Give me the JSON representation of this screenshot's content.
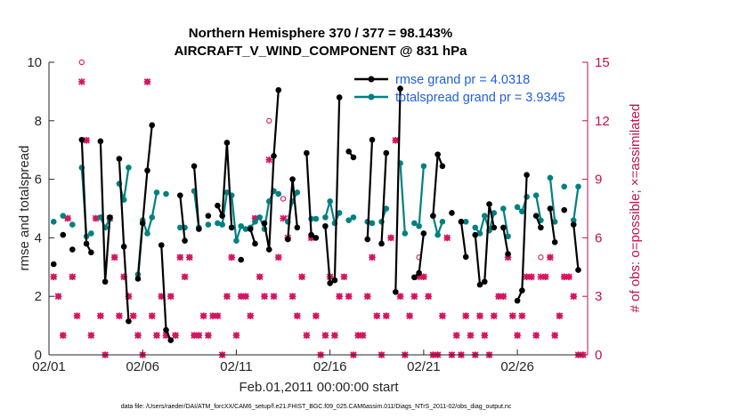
{
  "chart_data": {
    "type": "line",
    "title": "Northern Hemisphere 370 / 377 = 98.143%",
    "subtitle": "AIRCRAFT_V_WIND_COMPONENT @ 831 hPa",
    "xlabel": "Feb.01,2011 00:00:00 start",
    "ylabel": "rmse and totalspread",
    "ylabel_right": "# of obs: o=possible; ×=assimilated",
    "footer": "data file: /Users/raeder/DAI/ATM_forcXX/CAM6_setup/f.e21.FHIST_BGC.f09_025.CAM6assim.011/Diags_NTrS_2011-02/obs_diag_output.nc",
    "xlim": [
      1,
      29.75
    ],
    "ylim": [
      0,
      10
    ],
    "ylim_right": [
      0,
      15
    ],
    "x_ticks": [
      1,
      6,
      11,
      16,
      21,
      26
    ],
    "x_tick_labels": [
      "02/01",
      "02/06",
      "02/11",
      "02/16",
      "02/21",
      "02/26"
    ],
    "y_ticks": [
      0,
      2,
      4,
      6,
      8,
      10
    ],
    "y_tick_labels": [
      "0",
      "2",
      "4",
      "6",
      "8",
      "10"
    ],
    "y_right_ticks": [
      0,
      3,
      6,
      9,
      12,
      15
    ],
    "y_right_tick_labels": [
      "0",
      "3",
      "6",
      "9",
      "12",
      "15"
    ],
    "colors": {
      "rmse": "#000000",
      "spread": "#008080",
      "obs": "#d6155f",
      "axis_right": "#c0104f"
    },
    "series": [
      {
        "name": "rmse grand pr = 4.0318",
        "x": [
          1.25,
          1.5,
          1.75,
          2.0,
          2.25,
          2.5,
          2.75,
          3.0,
          3.25,
          3.5,
          3.75,
          4.0,
          4.25,
          4.5,
          4.75,
          5.0,
          5.25,
          5.5,
          5.75,
          6.0,
          6.25,
          6.5,
          6.75,
          7.0,
          7.25,
          7.5,
          7.75,
          8.0,
          8.25,
          8.5,
          8.75,
          9.0,
          9.25,
          9.5,
          9.75,
          10.0,
          10.25,
          10.5,
          10.75,
          11.0,
          11.25,
          11.5,
          11.75,
          12.0,
          12.25,
          12.5,
          12.75,
          13.0,
          13.25,
          13.5,
          13.75,
          14.0,
          14.25,
          14.5,
          14.75,
          15.0,
          15.25,
          15.5,
          15.75,
          16.0,
          16.25,
          16.5,
          16.75,
          17.0,
          17.25,
          17.5,
          17.75,
          18.0,
          18.25,
          18.5,
          18.75,
          19.0,
          19.25,
          19.5,
          19.75,
          20.0,
          20.25,
          20.5,
          20.75,
          21.0,
          21.25,
          21.5,
          21.75,
          22.0,
          22.25,
          22.5,
          22.75,
          23.0,
          23.25,
          23.5,
          23.75,
          24.0,
          24.25,
          24.5,
          24.75,
          25.0,
          25.25,
          25.5,
          25.75,
          26.0,
          26.25,
          26.5,
          26.75,
          27.0,
          27.25,
          27.5,
          27.75,
          28.0,
          28.25,
          28.5,
          28.75,
          29.0,
          29.25,
          29.5
        ],
        "values": [
          3.1,
          null,
          4.1,
          null,
          3.6,
          null,
          7.35,
          3.8,
          3.5,
          null,
          7.3,
          2.5,
          4.7,
          null,
          6.7,
          3.7,
          1.15,
          null,
          2.6,
          4.5,
          6.3,
          7.85,
          null,
          3.75,
          0.85,
          0.5,
          null,
          5.45,
          3.9,
          null,
          6.45,
          4.3,
          null,
          4.75,
          null,
          5.1,
          4.75,
          7.25,
          4.35,
          null,
          3.25,
          null,
          4.3,
          3.8,
          null,
          4.5,
          3.6,
          6.8,
          9.05,
          null,
          3.95,
          6.0,
          4.35,
          null,
          6.9,
          4.1,
          4.0,
          null,
          4.4,
          2.45,
          2.55,
          8.8,
          null,
          6.95,
          6.75,
          null,
          null,
          3.95,
          7.35,
          null,
          3.8,
          6.9,
          null,
          2.15,
          9.1,
          null,
          null,
          2.65,
          2.8,
          4.15,
          null,
          4.75,
          6.85,
          6.45,
          null,
          4.85,
          null,
          4.55,
          3.35,
          null,
          4.1,
          2.4,
          2.5,
          5.15,
          4.35,
          null,
          4.35,
          3.45,
          null,
          1.85,
          2.2,
          6.15,
          null,
          4.75,
          4.35,
          null,
          5.0,
          3.85,
          null,
          4.95,
          null,
          4.45,
          2.9,
          null
        ]
      },
      {
        "name": "totalspread grand pr = 3.9345",
        "x": [
          1.25,
          1.5,
          1.75,
          2.0,
          2.25,
          2.5,
          2.75,
          3.0,
          3.25,
          3.5,
          3.75,
          4.0,
          4.25,
          4.5,
          4.75,
          5.0,
          5.25,
          5.5,
          5.75,
          6.0,
          6.25,
          6.5,
          6.75,
          7.0,
          7.25,
          7.5,
          7.75,
          8.0,
          8.25,
          8.5,
          8.75,
          9.0,
          9.25,
          9.5,
          9.75,
          10.0,
          10.25,
          10.5,
          10.75,
          11.0,
          11.25,
          11.5,
          11.75,
          12.0,
          12.25,
          12.5,
          12.75,
          13.0,
          13.25,
          13.5,
          13.75,
          14.0,
          14.25,
          14.5,
          14.75,
          15.0,
          15.25,
          15.5,
          15.75,
          16.0,
          16.25,
          16.5,
          16.75,
          17.0,
          17.25,
          17.5,
          17.75,
          18.0,
          18.25,
          18.5,
          18.75,
          19.0,
          19.25,
          19.5,
          19.75,
          20.0,
          20.25,
          20.5,
          20.75,
          21.0,
          21.25,
          21.5,
          21.75,
          22.0,
          22.25,
          22.5,
          22.75,
          23.0,
          23.25,
          23.5,
          23.75,
          24.0,
          24.25,
          24.5,
          24.75,
          25.0,
          25.25,
          25.5,
          25.75,
          26.0,
          26.25,
          26.5,
          26.75,
          27.0,
          27.25,
          27.5,
          27.75,
          28.0,
          28.25,
          28.5,
          28.75,
          29.0,
          29.25,
          29.5
        ],
        "values": [
          4.55,
          null,
          4.75,
          null,
          4.45,
          null,
          6.4,
          4.05,
          4.15,
          null,
          4.7,
          4.35,
          4.65,
          null,
          5.85,
          5.3,
          6.4,
          null,
          2.75,
          4.6,
          4.15,
          4.7,
          5.55,
          null,
          5.5,
          null,
          null,
          4.35,
          4.35,
          null,
          5.6,
          4.35,
          null,
          4.45,
          null,
          4.5,
          4.45,
          5.55,
          5.45,
          3.9,
          4.4,
          4.3,
          4.35,
          4.55,
          4.7,
          4.3,
          5.25,
          5.6,
          5.5,
          null,
          4.55,
          5.25,
          5.55,
          null,
          null,
          4.65,
          4.65,
          null,
          4.7,
          5.25,
          4.5,
          4.85,
          null,
          4.6,
          4.7,
          null,
          null,
          4.55,
          4.5,
          null,
          4.55,
          5.0,
          null,
          null,
          6.55,
          4.15,
          null,
          4.5,
          4.4,
          6.45,
          null,
          4.75,
          4.1,
          4.55,
          null,
          null,
          null,
          4.55,
          4.55,
          null,
          4.35,
          4.15,
          4.75,
          4.25,
          4.85,
          null,
          5.0,
          4.05,
          null,
          5.05,
          4.9,
          5.4,
          null,
          5.45,
          4.6,
          null,
          6.05,
          4.55,
          null,
          5.75,
          null,
          4.6,
          5.75,
          null
        ]
      },
      {
        "name": "obs possible",
        "axis": "right",
        "x": [
          1.25,
          1.5,
          1.75,
          2.0,
          2.25,
          2.5,
          2.75,
          3.0,
          3.25,
          3.5,
          3.75,
          4.0,
          4.25,
          4.5,
          4.75,
          5.0,
          5.25,
          5.5,
          5.75,
          6.0,
          6.25,
          6.5,
          6.75,
          7.0,
          7.25,
          7.5,
          7.75,
          8.0,
          8.25,
          8.5,
          8.75,
          9.0,
          9.25,
          9.5,
          9.75,
          10.0,
          10.25,
          10.5,
          10.75,
          11.0,
          11.25,
          11.5,
          11.75,
          12.0,
          12.25,
          12.5,
          12.75,
          13.0,
          13.25,
          13.5,
          13.75,
          14.0,
          14.25,
          14.5,
          14.75,
          15.0,
          15.25,
          15.5,
          15.75,
          16.0,
          16.25,
          16.5,
          16.75,
          17.0,
          17.25,
          17.5,
          17.75,
          18.0,
          18.25,
          18.5,
          18.75,
          19.0,
          19.25,
          19.5,
          19.75,
          20.0,
          20.25,
          20.5,
          20.75,
          21.0,
          21.25,
          21.5,
          21.75,
          22.0,
          22.25,
          22.5,
          22.75,
          23.0,
          23.25,
          23.5,
          23.75,
          24.0,
          24.25,
          24.5,
          24.75,
          25.0,
          25.25,
          25.5,
          25.75,
          26.0,
          26.25,
          26.5,
          26.75,
          27.0,
          27.25,
          27.5,
          27.75,
          28.0,
          28.25,
          28.5,
          28.75,
          29.0,
          29.25,
          29.5
        ],
        "values": [
          4,
          3,
          1,
          7,
          4,
          2,
          15,
          11,
          1,
          7,
          2,
          0,
          7,
          5,
          2,
          4,
          3,
          2,
          1,
          0,
          14,
          2,
          1,
          3,
          1,
          3,
          1,
          5,
          4,
          5,
          1,
          1,
          2,
          1,
          2,
          2,
          0,
          3,
          5,
          1,
          3,
          3,
          2,
          7,
          4,
          3,
          12,
          3,
          5,
          8,
          7,
          3,
          2,
          4,
          1,
          6,
          2,
          0,
          1,
          4,
          1,
          3,
          4,
          3,
          0,
          1,
          1,
          3,
          5,
          2,
          0,
          2,
          6,
          11,
          3,
          0,
          2,
          3,
          5,
          4,
          3,
          0,
          0,
          2,
          6,
          0,
          1,
          0,
          2,
          1,
          0,
          2,
          1,
          0,
          2,
          3,
          3,
          5,
          2,
          1,
          2,
          4,
          4,
          1,
          5,
          4,
          5,
          1,
          2,
          4,
          4,
          3,
          0,
          0
        ],
        "marker": "o"
      },
      {
        "name": "obs assimilated",
        "axis": "right",
        "x": [
          1.25,
          1.5,
          1.75,
          2.0,
          2.25,
          2.5,
          2.75,
          3.0,
          3.25,
          3.5,
          3.75,
          4.0,
          4.25,
          4.5,
          4.75,
          5.0,
          5.25,
          5.5,
          5.75,
          6.0,
          6.25,
          6.5,
          6.75,
          7.0,
          7.25,
          7.5,
          7.75,
          8.0,
          8.25,
          8.5,
          8.75,
          9.0,
          9.25,
          9.5,
          9.75,
          10.0,
          10.25,
          10.5,
          10.75,
          11.0,
          11.25,
          11.5,
          11.75,
          12.0,
          12.25,
          12.5,
          12.75,
          13.0,
          13.25,
          13.5,
          13.75,
          14.0,
          14.25,
          14.5,
          14.75,
          15.0,
          15.25,
          15.5,
          15.75,
          16.0,
          16.25,
          16.5,
          16.75,
          17.0,
          17.25,
          17.5,
          17.75,
          18.0,
          18.25,
          18.5,
          18.75,
          19.0,
          19.25,
          19.5,
          19.75,
          20.0,
          20.25,
          20.5,
          20.75,
          21.0,
          21.25,
          21.5,
          21.75,
          22.0,
          22.25,
          22.5,
          22.75,
          23.0,
          23.25,
          23.5,
          23.75,
          24.0,
          24.25,
          24.5,
          24.75,
          25.0,
          25.25,
          25.5,
          25.75,
          26.0,
          26.25,
          26.5,
          26.75,
          27.0,
          27.25,
          27.5,
          27.75,
          28.0,
          28.25,
          28.5,
          28.75,
          29.0,
          29.25,
          29.5
        ],
        "values": [
          4,
          3,
          1,
          7,
          4,
          2,
          14,
          11,
          1,
          7,
          2,
          0,
          7,
          5,
          2,
          4,
          3,
          2,
          1,
          0,
          14,
          2,
          1,
          3,
          1,
          3,
          1,
          5,
          4,
          5,
          1,
          1,
          2,
          1,
          2,
          2,
          0,
          3,
          5,
          1,
          3,
          3,
          2,
          7,
          4,
          3,
          10,
          3,
          5,
          7,
          6,
          3,
          2,
          4,
          1,
          6,
          2,
          0,
          1,
          4,
          1,
          3,
          4,
          3,
          0,
          1,
          1,
          3,
          5,
          2,
          0,
          2,
          6,
          11,
          3,
          0,
          2,
          3,
          4,
          4,
          3,
          0,
          0,
          2,
          6,
          0,
          1,
          0,
          2,
          1,
          0,
          2,
          1,
          0,
          2,
          3,
          3,
          5,
          2,
          1,
          2,
          4,
          4,
          1,
          4,
          4,
          5,
          1,
          2,
          4,
          4,
          3,
          0,
          0
        ],
        "marker": "x"
      }
    ],
    "legend": {
      "location": "top-right",
      "entries": [
        "rmse grand pr = 4.0318",
        "totalspread grand pr = 3.9345"
      ]
    }
  }
}
